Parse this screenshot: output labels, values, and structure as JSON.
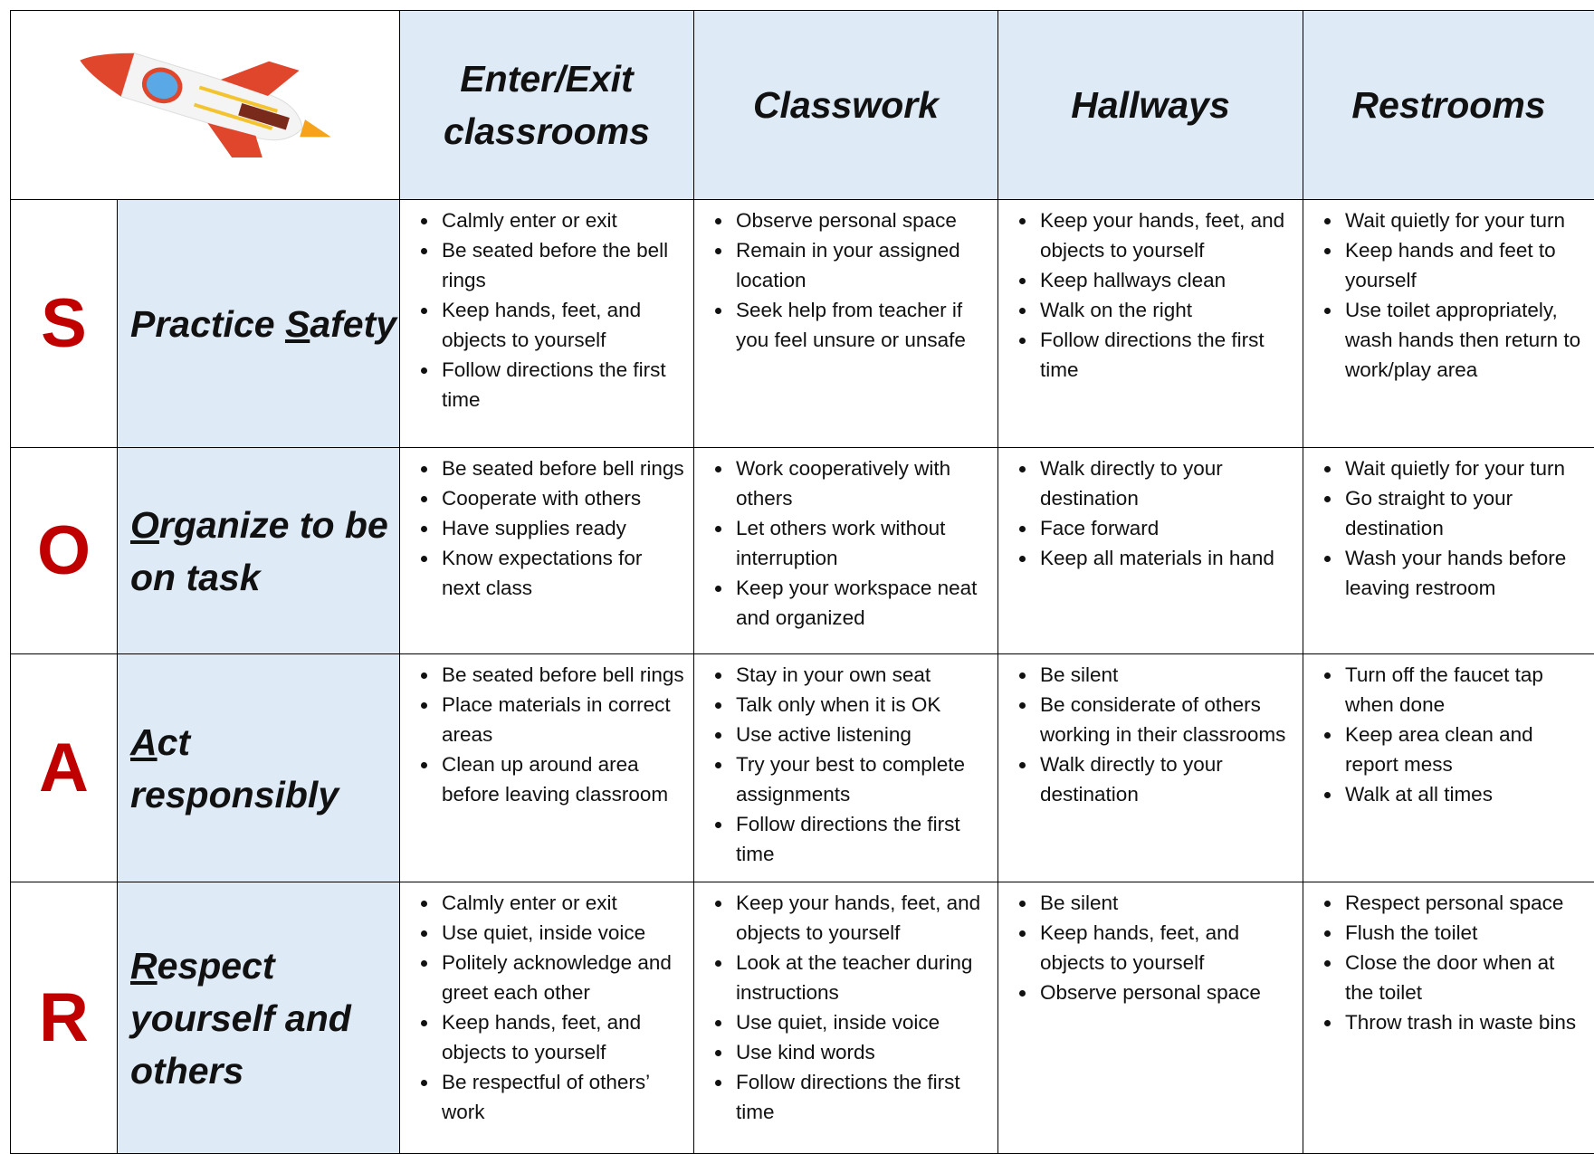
{
  "table": {
    "columns": [
      "Enter/Exit classrooms",
      "Classwork",
      "Hallways",
      "Restrooms"
    ],
    "rows": [
      {
        "letter": "S",
        "title": {
          "lead": "Practice ",
          "underlined": "S",
          "rest": "afety"
        },
        "cells": [
          [
            "Calmly enter or exit",
            "Be seated before the bell rings",
            "Keep hands, feet, and objects to yourself",
            "Follow directions the first time"
          ],
          [
            "Observe personal space",
            "Remain in your assigned location",
            "Seek help from teacher if you feel unsure or unsafe"
          ],
          [
            "Keep your hands, feet, and objects to yourself",
            "Keep hallways clean",
            "Walk on the right",
            "Follow directions the first time"
          ],
          [
            "Wait quietly for your turn",
            "Keep hands and feet to yourself",
            "Use toilet appropriately, wash hands then return to work/play area"
          ]
        ]
      },
      {
        "letter": "O",
        "title": {
          "underlined": "O",
          "rest": "rganize to be on task"
        },
        "cells": [
          [
            "Be seated before bell rings",
            "Cooperate with others",
            "Have supplies ready",
            "Know expectations for next class"
          ],
          [
            "Work cooperatively with others",
            "Let others work without interruption",
            "Keep your workspace neat and organized"
          ],
          [
            "Walk directly to your destination",
            "Face forward",
            "Keep all materials in hand"
          ],
          [
            "Wait quietly for your turn",
            "Go straight to your destination",
            "Wash your hands before leaving restroom"
          ]
        ]
      },
      {
        "letter": "A",
        "title": {
          "underlined": "A",
          "rest": "ct responsibly"
        },
        "cells": [
          [
            "Be seated before bell rings",
            "Place materials in correct areas",
            "Clean up around area before leaving classroom"
          ],
          [
            "Stay in your own seat",
            "Talk only when it is OK",
            "Use active listening",
            "Try your best to complete assignments",
            "Follow directions the first time"
          ],
          [
            "Be silent",
            "Be considerate of others working in their classrooms",
            "Walk directly to your destination"
          ],
          [
            "Turn off the faucet tap when done",
            "Keep area clean and report mess",
            "Walk at all times"
          ]
        ]
      },
      {
        "letter": "R",
        "title": {
          "underlined": "R",
          "rest": "espect yourself and others"
        },
        "cells": [
          [
            "Calmly enter or exit",
            "Use quiet, inside voice",
            "Politely acknowledge and greet each other",
            "Keep hands, feet, and objects to yourself",
            "Be respectful of others’ work"
          ],
          [
            "Keep your hands, feet, and objects to yourself",
            "Look at the teacher during instructions",
            "Use quiet, inside voice",
            "Use kind words",
            "Follow directions the first time"
          ],
          [
            "Be silent",
            "Keep hands, feet, and objects to yourself",
            "Observe personal space"
          ],
          [
            "Respect personal space",
            "Flush the toilet",
            "Close the door when at the toilet",
            "Throw trash in waste bins"
          ]
        ]
      }
    ]
  }
}
